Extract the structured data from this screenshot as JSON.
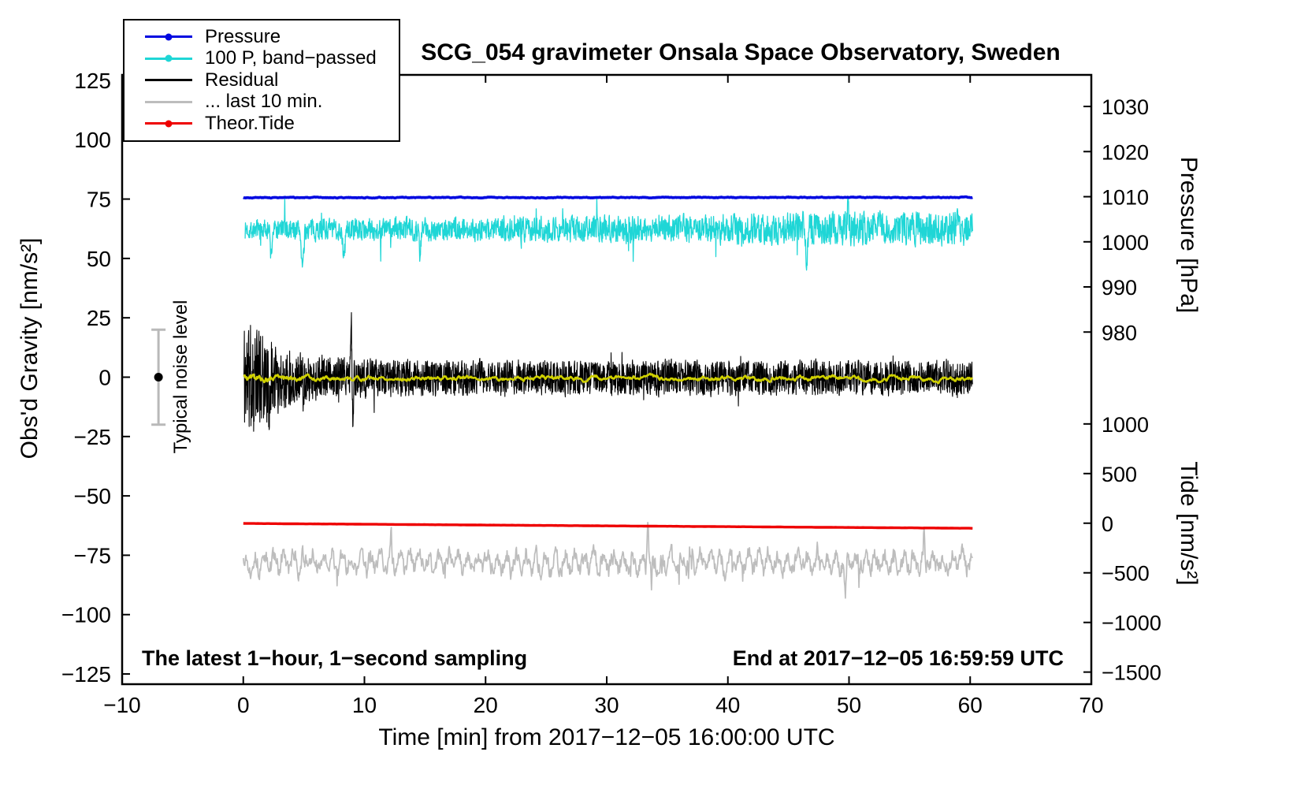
{
  "title": "SCG_054 gravimeter Onsala Space Observatory, Sweden",
  "chart_data": {
    "type": "line",
    "title": "SCG_054 gravimeter Onsala Space Observatory, Sweden",
    "xlabel": "Time [min] from 2017−12−05 16:00:00 UTC",
    "ylabel_left": "Obs'd Gravity [nm/s²]",
    "ylabel_pressure": "Pressure [hPa]",
    "ylabel_tide": "Tide [nm/s²]",
    "xlim": [
      -10,
      70
    ],
    "ylim_left": [
      -129.3,
      127.3
    ],
    "grid": false,
    "legend_position": "top-left",
    "x_ticks": [
      {
        "v": -10,
        "label": "−10"
      },
      {
        "v": 0,
        "label": "0"
      },
      {
        "v": 10,
        "label": "10"
      },
      {
        "v": 20,
        "label": "20"
      },
      {
        "v": 30,
        "label": "30"
      },
      {
        "v": 40,
        "label": "40"
      },
      {
        "v": 50,
        "label": "50"
      },
      {
        "v": 60,
        "label": "60"
      },
      {
        "v": 70,
        "label": "70"
      }
    ],
    "y_ticks_left": [
      {
        "v": -125,
        "label": "−125"
      },
      {
        "v": -100,
        "label": "−100"
      },
      {
        "v": -75,
        "label": "−75"
      },
      {
        "v": -50,
        "label": "−50"
      },
      {
        "v": -25,
        "label": "−25"
      },
      {
        "v": 0,
        "label": "0"
      },
      {
        "v": 25,
        "label": "25"
      },
      {
        "v": 50,
        "label": "50"
      },
      {
        "v": 75,
        "label": "75"
      },
      {
        "v": 100,
        "label": "100"
      },
      {
        "v": 125,
        "label": "125"
      }
    ],
    "pressure_ticks": [
      {
        "label": "1030",
        "v": 114.0
      },
      {
        "label": "1020",
        "v": 95.0
      },
      {
        "label": "1010",
        "v": 76.0
      },
      {
        "label": "1000",
        "v": 57.0
      },
      {
        "label": "990",
        "v": 38.0
      },
      {
        "label": "980",
        "v": 19.0
      }
    ],
    "tide_ticks": [
      {
        "label": "1000",
        "v": -19.7
      },
      {
        "label": "500",
        "v": -40.6
      },
      {
        "label": "0",
        "v": -61.5
      },
      {
        "label": "−500",
        "v": -82.4
      },
      {
        "label": "−1000",
        "v": -103.3
      },
      {
        "label": "−1500",
        "v": -124.2
      }
    ],
    "legend": [
      {
        "label": "Pressure",
        "color": "#0008e0",
        "marker": true
      },
      {
        "label": "100 P, band−passed",
        "color": "#1fd6d6",
        "marker": true
      },
      {
        "label": "Residual",
        "color": "#000000",
        "marker": false
      },
      {
        "label": "... last 10 min.",
        "color": "#bdbdbd",
        "marker": false
      },
      {
        "label": "Theor.Tide",
        "color": "#ee0000",
        "marker": true
      }
    ],
    "annotations": {
      "sampling": "The latest 1−hour, 1−second sampling",
      "end_time": "End at 2017−12−05 16:59:59 UTC",
      "noise": "Typical noise level"
    },
    "noise_bar": {
      "x_min": -7,
      "center": 0,
      "half_range": 20,
      "bar_color": "#b9b9b9",
      "dot_color": "#000000"
    },
    "series": [
      {
        "name": "bandpassed-pressure",
        "color": "#1fd6d6",
        "width": 1.3,
        "seed": 7,
        "n": 2200,
        "x0": 0.15,
        "x1": 60.2,
        "base": 62.2,
        "slope": 0.01,
        "amp": 6.5,
        "amp_slope": 0.012,
        "smooth": 0.25,
        "gain": 0.8,
        "spike_prob": 0.015,
        "spike_min": 3,
        "spike_max": 12,
        "spike_sign": 0,
        "events": [
          {
            "t": 2.3,
            "dv": -11,
            "w": 0.1
          },
          {
            "t": 4.9,
            "dv": -16,
            "w": 0.14
          },
          {
            "t": 8.3,
            "dv": -13,
            "w": 0.12
          },
          {
            "t": 14.6,
            "dv": -12,
            "w": 0.1
          },
          {
            "t": 46.5,
            "dv": -13,
            "w": 0.12
          },
          {
            "t": 49.9,
            "dv": 10,
            "w": 0.08
          }
        ]
      },
      {
        "name": "pressure",
        "color": "#0008e0",
        "width": 3.6,
        "seed": 3,
        "n": 900,
        "x0": 0.0,
        "x1": 60.2,
        "base": 75.6,
        "slope": 0.002,
        "amp": 0.32,
        "smooth": 0.6,
        "gain": 1.0
      },
      {
        "name": "residual",
        "color": "#000000",
        "width": 1.1,
        "seed": 11,
        "n": 3200,
        "x0": 0.05,
        "x1": 60.2,
        "base": -0.3,
        "amp": 10.5,
        "smooth": 0.18,
        "gain": 0.8,
        "env_extra": 31,
        "env_tau": 2.6,
        "spike_prob": 0.006,
        "spike_min": 3,
        "spike_max": 9,
        "spike_sign": 0,
        "events": [
          {
            "t": 2.1,
            "dv": -20,
            "w": 0.05
          },
          {
            "t": 8.9,
            "dv": 24,
            "w": 0.06
          },
          {
            "t": 9.05,
            "dv": -20,
            "w": 0.05
          }
        ]
      },
      {
        "name": "residual-lowpass",
        "color": "#cfd000",
        "width": 2.6,
        "seed": 5,
        "n": 900,
        "x0": 0.05,
        "x1": 60.2,
        "base": -0.4,
        "amp": 1.8,
        "smooth": 0.82,
        "gain": 1.9,
        "env_extra": 2.5,
        "env_tau": 3.0
      },
      {
        "name": "residual-last10min",
        "color": "#bdbdbd",
        "width": 1.7,
        "seed": 13,
        "n": 1400,
        "x0": 0.0,
        "x1": 60.2,
        "base": -78.0,
        "amp": 5.8,
        "smooth": 0.45,
        "gain": 1.0,
        "sin_amp": 3.2,
        "sin_period": 0.8,
        "spike_prob": 0.006,
        "spike_min": 3,
        "spike_max": 9,
        "spike_sign": 0,
        "events": [
          {
            "t": 12.2,
            "dv": 15,
            "w": 0.07
          },
          {
            "t": 33.4,
            "dv": 19,
            "w": 0.09
          },
          {
            "t": 33.7,
            "dv": -12,
            "w": 0.07
          },
          {
            "t": 49.7,
            "dv": -16,
            "w": 0.09
          },
          {
            "t": 56.2,
            "dv": 12,
            "w": 0.07
          }
        ]
      },
      {
        "name": "theoretical-tide",
        "color": "#ee0000",
        "width": 3.4,
        "seed": 2,
        "n": 400,
        "x0": 0.0,
        "x1": 60.2,
        "base": -61.6,
        "slope": -0.034,
        "amp": 0.05,
        "smooth": 0.5,
        "gain": 1.0
      }
    ]
  }
}
